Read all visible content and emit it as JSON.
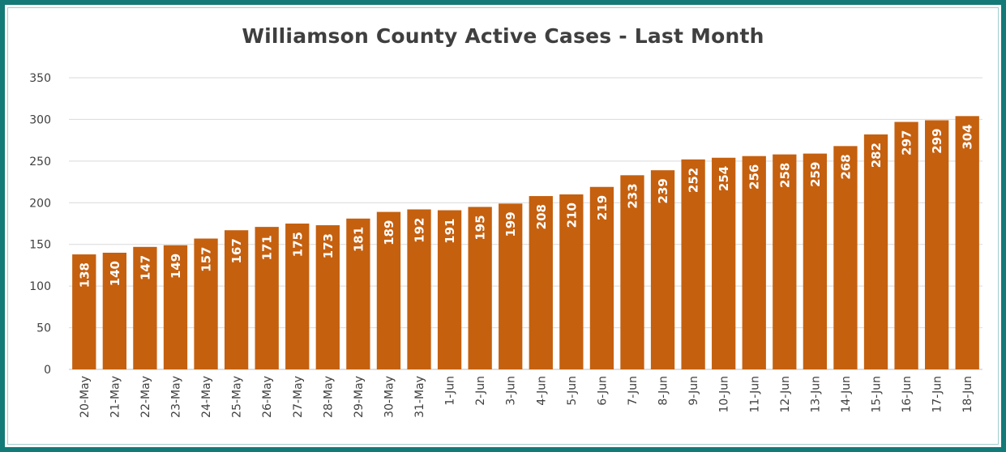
{
  "chart_data": {
    "type": "bar",
    "title": "Williamson County Active Cases - Last Month",
    "xlabel": "",
    "ylabel": "",
    "ylim": [
      0,
      350
    ],
    "yticks": [
      0,
      50,
      100,
      150,
      200,
      250,
      300,
      350
    ],
    "grid": true,
    "legend": "none",
    "bar_color": "#c5600f",
    "categories": [
      "20-May",
      "21-May",
      "22-May",
      "23-May",
      "24-May",
      "25-May",
      "26-May",
      "27-May",
      "28-May",
      "29-May",
      "30-May",
      "31-May",
      "1-Jun",
      "2-Jun",
      "3-Jun",
      "4-Jun",
      "5-Jun",
      "6-Jun",
      "7-Jun",
      "8-Jun",
      "9-Jun",
      "10-Jun",
      "11-Jun",
      "12-Jun",
      "13-Jun",
      "14-Jun",
      "15-Jun",
      "16-Jun",
      "17-Jun",
      "18-Jun"
    ],
    "values": [
      138,
      140,
      147,
      149,
      157,
      167,
      171,
      175,
      173,
      181,
      189,
      192,
      191,
      195,
      199,
      208,
      210,
      219,
      233,
      239,
      252,
      254,
      256,
      258,
      259,
      268,
      282,
      297,
      299,
      304
    ]
  }
}
